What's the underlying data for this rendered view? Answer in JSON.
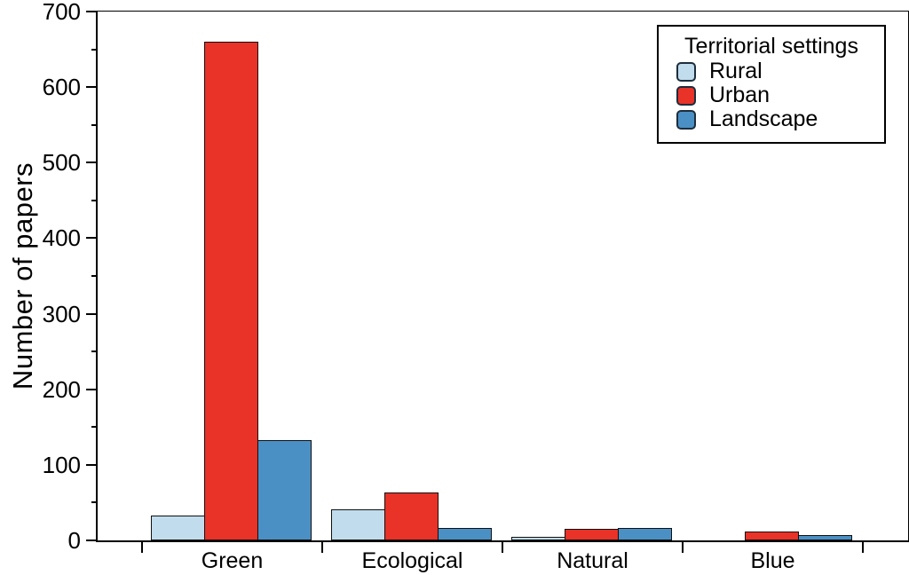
{
  "chart_data": {
    "type": "bar",
    "title": "",
    "ylabel": "Number of papers",
    "xlabel": "",
    "categories": [
      "Green",
      "Ecological",
      "Natural",
      "Blue"
    ],
    "series": [
      {
        "name": "Rural",
        "color": "#c1dcec",
        "values": [
          33,
          41,
          5,
          0
        ]
      },
      {
        "name": "Urban",
        "color": "#e93228",
        "values": [
          660,
          64,
          15,
          12
        ]
      },
      {
        "name": "Landscape",
        "color": "#4b90c4",
        "values": [
          133,
          16,
          16,
          7
        ]
      }
    ],
    "ylim": [
      0,
      700
    ],
    "y_major_step": 100,
    "y_minor_step": 50,
    "y_tick_labels": [
      "0",
      "100",
      "200",
      "300",
      "400",
      "500",
      "600",
      "700"
    ],
    "grid": false,
    "legend": {
      "title": "Territorial settings",
      "position": "top-right",
      "swatch_border_color": "#1d2d3d"
    },
    "axis_color": "#000000",
    "bar_border_color": "#111111",
    "plot_background": "#ffffff"
  }
}
